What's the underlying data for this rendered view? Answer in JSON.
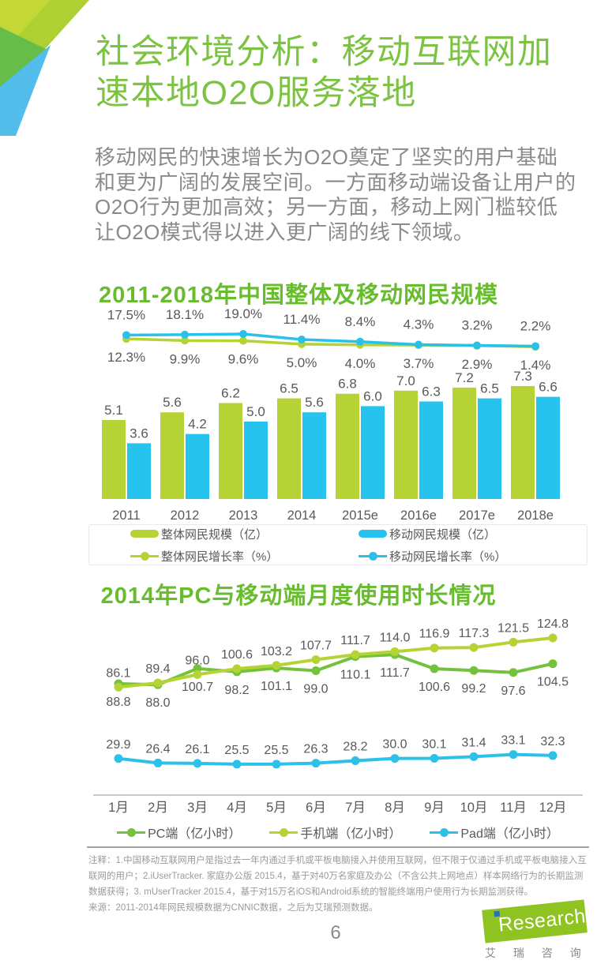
{
  "page": {
    "title": "社会环境分析：移动互联网加速本地O2O服务落地",
    "intro": "移动网民的快速增长为O2O奠定了坚实的用户基础和更为广阔的发展空间。一方面移动端设备让用户的O2O行为更加高效；另一方面，移动上网门槛较低让O2O模式得以进入更广阔的线下领域。",
    "notes": "注释：1.中国移动互联网用户是指过去一年内通过手机或平板电脑接入并使用互联网，但不限于仅通过手机或平板电脑接入互联网的用户；2.iUserTracker. 家庭办公版 2015.4，基于对40万名家庭及办公（不含公共上网地点）样本网络行为的长期监测数据获得；3. mUserTracker 2015.4，基于对15万名iOS和Android系统的智能终端用户使用行为长期监测获得。",
    "source": "来源：2011-2014年网民规模数据为CNNIC数据，之后为艾瑞预测数据。",
    "page_number": "6",
    "logo": {
      "brand_i": "i",
      "brand": "Research",
      "caption": "艾 瑞 咨 询"
    }
  },
  "colors": {
    "page_title_green": "#7cc342",
    "chart_title_green": "#67bd2d",
    "bar_green": "#b5d334",
    "bar_blue": "#25c3ee",
    "growth_green": "#b5d334",
    "growth_blue": "#29c0e9",
    "pc_green": "#74c13d",
    "phone_green": "#b5d334",
    "pad_blue": "#2cc1e9",
    "label_gray": "#595959",
    "body_gray": "#8a8a8a"
  },
  "chart_data": [
    {
      "type": "bar",
      "title": "2011-2018年中国整体及移动网民规模",
      "categories": [
        "2011",
        "2012",
        "2013",
        "2014",
        "2015e",
        "2016e",
        "2017e",
        "2018e"
      ],
      "series": [
        {
          "name": "整体网民规模（亿）",
          "type": "bar",
          "color": "#b5d334",
          "values": [
            5.1,
            5.6,
            6.2,
            6.5,
            6.8,
            7.0,
            7.2,
            7.3
          ]
        },
        {
          "name": "移动网民规模（亿）",
          "type": "bar",
          "color": "#25c3ee",
          "values": [
            3.6,
            4.2,
            5.0,
            5.6,
            6.0,
            6.3,
            6.5,
            6.6
          ]
        },
        {
          "name": "整体网民增长率（%）",
          "type": "line",
          "color": "#b5d334",
          "unit": "%",
          "label_pos": "below",
          "values": [
            12.3,
            9.9,
            9.6,
            5.0,
            4.0,
            3.7,
            2.9,
            1.4
          ]
        },
        {
          "name": "移动网民增长率（%）",
          "type": "line",
          "color": "#29c0e9",
          "unit": "%",
          "label_pos": "above",
          "values": [
            17.5,
            18.1,
            19.0,
            11.4,
            8.4,
            4.3,
            3.2,
            2.2
          ]
        }
      ],
      "legend_position": "bottom-box",
      "grid": false,
      "bar_value_range": [
        0,
        7.3
      ],
      "growth_value_range": [
        0,
        19.0
      ]
    },
    {
      "type": "line",
      "title": "2014年PC与移动端月度使用时长情况",
      "categories": [
        "1月",
        "2月",
        "3月",
        "4月",
        "5月",
        "6月",
        "7月",
        "8月",
        "9月",
        "10月",
        "11月",
        "12月"
      ],
      "series": [
        {
          "name": "PC端（亿小时）",
          "type": "line",
          "color": "#74c13d",
          "label_pos": "below",
          "values": [
            88.8,
            88.0,
            100.7,
            98.2,
            101.1,
            99.0,
            110.1,
            111.7,
            100.6,
            99.2,
            97.6,
            104.5
          ]
        },
        {
          "name": "手机端（亿小时）",
          "type": "line",
          "color": "#b5d334",
          "label_pos": "above",
          "values": [
            86.1,
            89.4,
            96.0,
            100.6,
            103.2,
            107.7,
            111.7,
            114.0,
            116.9,
            117.3,
            121.5,
            124.8
          ]
        },
        {
          "name": "Pad端（亿小时）",
          "type": "line",
          "color": "#2cc1e9",
          "label_pos": "above",
          "values": [
            29.9,
            26.4,
            26.1,
            25.5,
            25.5,
            26.3,
            28.2,
            30.0,
            30.1,
            31.4,
            33.1,
            32.3
          ]
        }
      ],
      "legend_position": "bottom",
      "grid": false,
      "value_range": [
        25.5,
        124.8
      ]
    }
  ]
}
